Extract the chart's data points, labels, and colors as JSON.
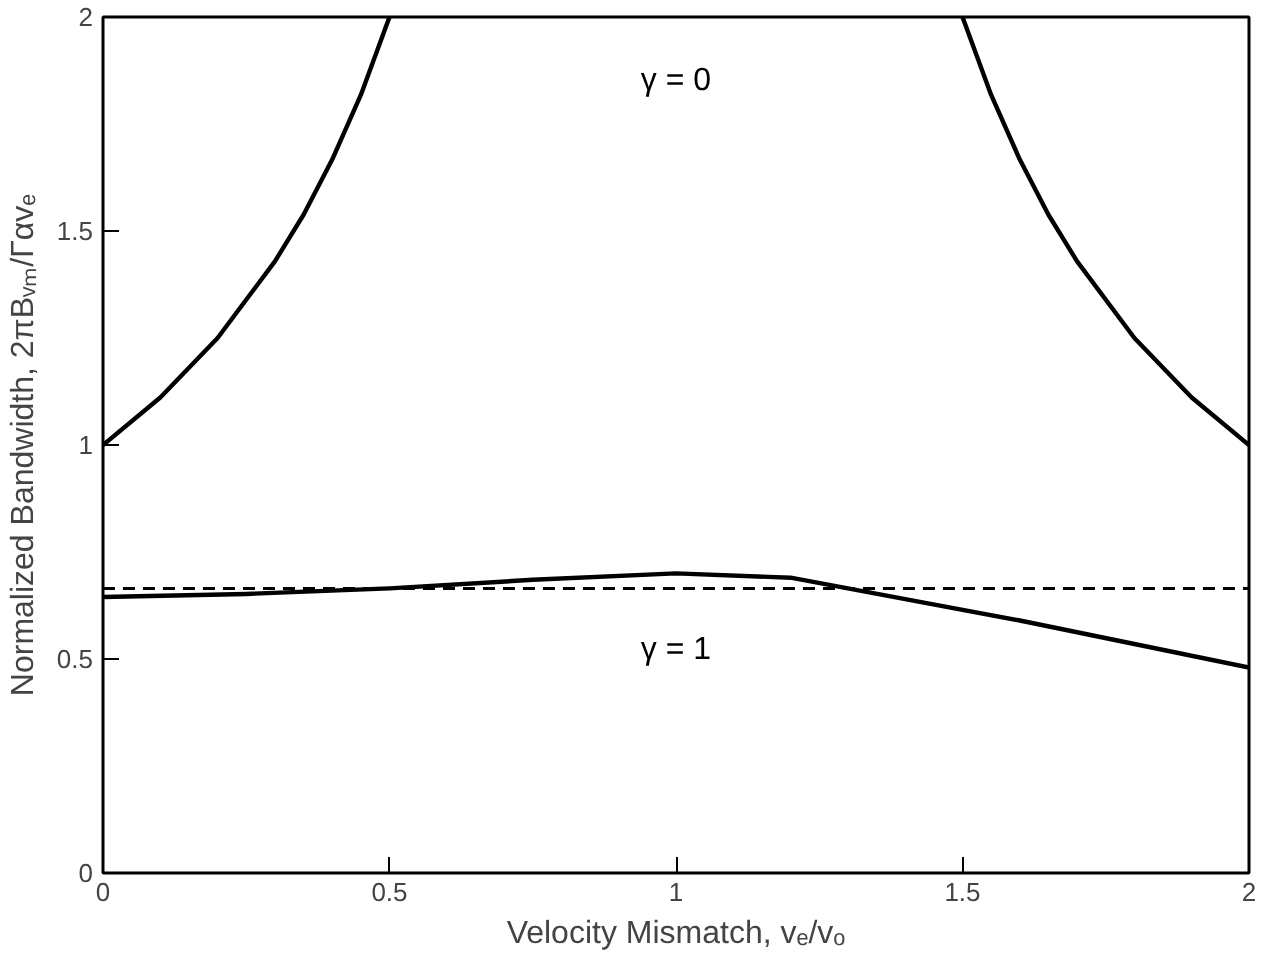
{
  "chart_data": {
    "type": "line",
    "xlabel": "Velocity Mismatch, vₑ/vₒ",
    "ylabel": "Normalized Bandwidth, 2πBᵥₘ/Γαvₑ",
    "xlim": [
      0,
      2
    ],
    "ylim": [
      0,
      2
    ],
    "xticks": [
      0,
      0.5,
      1,
      1.5,
      2
    ],
    "yticks": [
      0,
      0.5,
      1,
      1.5,
      2
    ],
    "series": [
      {
        "color": "#000000",
        "x": [
          0,
          0.1,
          0.2,
          0.3,
          0.35,
          0.4,
          0.45,
          0.5
        ],
        "values": [
          1,
          1.111,
          1.25,
          1.429,
          1.538,
          1.667,
          1.818,
          2
        ]
      },
      {
        "color": "#000000",
        "x": [
          1.5,
          1.55,
          1.6,
          1.65,
          1.7,
          1.8,
          1.9,
          2
        ],
        "values": [
          2,
          1.818,
          1.667,
          1.538,
          1.429,
          1.25,
          1.111,
          1
        ]
      },
      {
        "color": "#000000",
        "x": [
          0,
          0.25,
          0.5,
          0.75,
          1,
          1.2,
          1.4,
          1.6,
          1.8,
          2
        ],
        "values": [
          0.645,
          0.652,
          0.665,
          0.685,
          0.7,
          0.69,
          0.64,
          0.59,
          0.535,
          0.48
        ]
      }
    ],
    "ref_lines": [
      {
        "axis": "y",
        "value": 0.665,
        "color": "#000000",
        "line_style": "dashed"
      }
    ],
    "annotations": [
      "γ = 0",
      "γ = 1"
    ]
  }
}
